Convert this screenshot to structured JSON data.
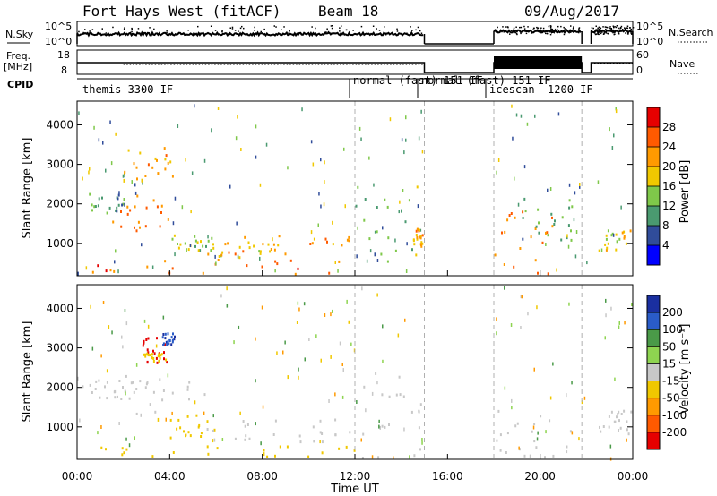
{
  "header": {
    "station": "Fort Hays West (fitACF)",
    "beam": "Beam 18",
    "date": "09/Aug/2017"
  },
  "left_labels": {
    "nsky": "N.Sky",
    "freq_line1": "Freq.",
    "freq_line2": "[MHz]",
    "cpid": "CPID"
  },
  "right_labels": {
    "nsearch": "N.Search",
    "nave": "Nave"
  },
  "noise_panel": {
    "left_ticks": [
      "10^5",
      "10^0"
    ],
    "right_ticks": [
      "10^5",
      "10^0"
    ]
  },
  "freq_panel": {
    "left_ticks": [
      "18",
      "8"
    ],
    "right_ticks": [
      "60",
      "0"
    ]
  },
  "cpid_segments": [
    {
      "label": "themis 3300 IF",
      "start_h": 0.0
    },
    {
      "label": "normal (fast) 151 IF",
      "start_h": 12.0
    },
    {
      "label": "normal (fast) 151 IF",
      "start_h": 15.0
    },
    {
      "label": "icescan -1200 IF",
      "start_h": 18.0
    }
  ],
  "power_colorbar": {
    "label": "Power [dB]",
    "ticks": [
      "28",
      "24",
      "20",
      "16",
      "12",
      "8",
      "4"
    ],
    "colors": [
      "#e60000",
      "#ff5a00",
      "#ff9a00",
      "#f0c800",
      "#7fc84a",
      "#4a9a70",
      "#304c9a",
      "#0000ff"
    ]
  },
  "velocity_colorbar": {
    "label": "Velocity [m s⁻¹]",
    "ticks": [
      "200",
      "100",
      "50",
      "15",
      "-15",
      "-50",
      "-100",
      "-200"
    ],
    "colors": [
      "#1a2fa0",
      "#2a5cc8",
      "#4a9a48",
      "#8ed450",
      "#c8c8c8",
      "#f0c800",
      "#ff9a00",
      "#ff5a00",
      "#e60000"
    ]
  },
  "ylabel": "Slant Range [km]",
  "xlabel": "Time UT",
  "x_ticks": [
    "00:00",
    "04:00",
    "08:00",
    "12:00",
    "16:00",
    "20:00",
    "00:00"
  ],
  "y_ticks": [
    "4000",
    "3000",
    "2000",
    "1000"
  ],
  "chart_data": [
    {
      "type": "heatmap",
      "title": "Fort Hays West (fitACF)",
      "subtitle": "Beam 18",
      "xlabel": "Time UT",
      "ylabel": "Slant Range [km]",
      "xlim_hours": [
        0,
        24
      ],
      "ylim": [
        180,
        4600
      ],
      "color_quantity": "Power [dB]",
      "color_range": [
        0,
        30
      ],
      "data_gap_hours": [
        15.0,
        18.0
      ],
      "regions": [
        {
          "t": [
            0.2,
            2.0
          ],
          "r": [
            1700,
            2300
          ],
          "value": 10
        },
        {
          "t": [
            2.0,
            4.2
          ],
          "r": [
            2500,
            3400
          ],
          "value": 20
        },
        {
          "t": [
            1.5,
            4.5
          ],
          "r": [
            1300,
            2200
          ],
          "value": 22
        },
        {
          "t": [
            3.5,
            5.8
          ],
          "r": [
            800,
            1200
          ],
          "value": 14
        },
        {
          "t": [
            5.5,
            8.5
          ],
          "r": [
            600,
            1050
          ],
          "value": 18
        },
        {
          "t": [
            6.5,
            11.8
          ],
          "r": [
            700,
            1250
          ],
          "value": 20
        },
        {
          "t": [
            0.5,
            12.0
          ],
          "r": [
            200,
            600
          ],
          "value": 24
        },
        {
          "t": [
            12.0,
            14.9
          ],
          "r": [
            200,
            2500
          ],
          "value": 12
        },
        {
          "t": [
            14.5,
            14.9
          ],
          "r": [
            900,
            1400
          ],
          "value": 20
        },
        {
          "t": [
            18.0,
            20.5
          ],
          "r": [
            200,
            1800
          ],
          "value": 22
        },
        {
          "t": [
            19.0,
            21.5
          ],
          "r": [
            1000,
            2200
          ],
          "value": 10
        },
        {
          "t": [
            22.5,
            24.0
          ],
          "r": [
            800,
            1400
          ],
          "value": 16
        }
      ]
    },
    {
      "type": "heatmap",
      "xlabel": "Time UT",
      "ylabel": "Slant Range [km]",
      "xlim_hours": [
        0,
        24
      ],
      "ylim": [
        180,
        4600
      ],
      "color_quantity": "Velocity [m s⁻¹]",
      "color_range": [
        -200,
        200
      ],
      "data_gap_hours": [
        15.0,
        18.0
      ],
      "regions": [
        {
          "t": [
            0.2,
            2.5
          ],
          "r": [
            1700,
            2300
          ],
          "value": 0
        },
        {
          "t": [
            2.8,
            3.9
          ],
          "r": [
            2600,
            3300
          ],
          "value": -180
        },
        {
          "t": [
            3.6,
            4.2
          ],
          "r": [
            3050,
            3350
          ],
          "value": 150
        },
        {
          "t": [
            2.8,
            3.8
          ],
          "r": [
            2650,
            2850
          ],
          "value": -40
        },
        {
          "t": [
            1.5,
            5.5
          ],
          "r": [
            1300,
            2200
          ],
          "value": 0
        },
        {
          "t": [
            4.0,
            6.0
          ],
          "r": [
            700,
            1300
          ],
          "value": -30
        },
        {
          "t": [
            6.5,
            11.8
          ],
          "r": [
            600,
            1200
          ],
          "value": 0
        },
        {
          "t": [
            0.5,
            12.0
          ],
          "r": [
            200,
            500
          ],
          "value": -40
        },
        {
          "t": [
            12.0,
            14.9
          ],
          "r": [
            200,
            2400
          ],
          "value": 0
        },
        {
          "t": [
            18.0,
            21.5
          ],
          "r": [
            200,
            1400
          ],
          "value": 0
        },
        {
          "t": [
            22.5,
            24.0
          ],
          "r": [
            800,
            1400
          ],
          "value": 0
        }
      ]
    }
  ]
}
